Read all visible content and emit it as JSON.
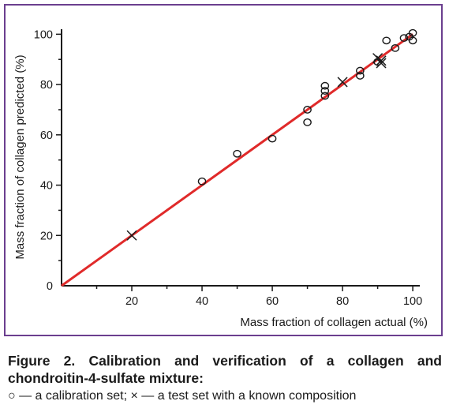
{
  "figure": {
    "caption_title": "Figure 2. Calibration and verification of a collagen and chondroitin-4-sulfate mixture:",
    "caption_legend": "○ — a calibration set; × — a test set with a known composition"
  },
  "colors": {
    "frame_border": "#6b3f8f",
    "fit_line": "#e02a2a",
    "markers": "#1a1a1a",
    "axes": "#1a1a1a"
  },
  "chart_data": {
    "type": "scatter",
    "xlabel": "Mass fraction of collagen actual (%)",
    "ylabel": "Mass fraction of collagen predicted (%)",
    "xlim": [
      0,
      102
    ],
    "ylim": [
      0,
      102
    ],
    "x_ticks": [
      "20",
      "40",
      "60",
      "80",
      "100"
    ],
    "y_ticks": [
      "0",
      "20",
      "40",
      "60",
      "80",
      "100"
    ],
    "grid": false,
    "series": [
      {
        "marker": "circle",
        "points": [
          [
            40,
            41.5
          ],
          [
            50,
            52.5
          ],
          [
            60,
            58.5
          ],
          [
            70,
            65
          ],
          [
            70,
            70
          ],
          [
            75,
            75.5
          ],
          [
            75,
            77.5
          ],
          [
            75,
            79.5
          ],
          [
            85,
            83.5
          ],
          [
            85,
            85.5
          ],
          [
            90,
            89
          ],
          [
            92.5,
            97.5
          ],
          [
            95,
            94.5
          ],
          [
            97.5,
            98.5
          ],
          [
            99,
            99
          ],
          [
            100,
            97.5
          ],
          [
            100,
            100.5
          ]
        ]
      },
      {
        "marker": "cross",
        "points": [
          [
            20,
            20
          ],
          [
            80,
            81
          ],
          [
            90,
            90.5
          ],
          [
            91,
            88.5
          ],
          [
            91,
            89.5
          ]
        ]
      }
    ],
    "fit_line": {
      "from": [
        0,
        0
      ],
      "to": [
        100,
        100
      ]
    }
  }
}
